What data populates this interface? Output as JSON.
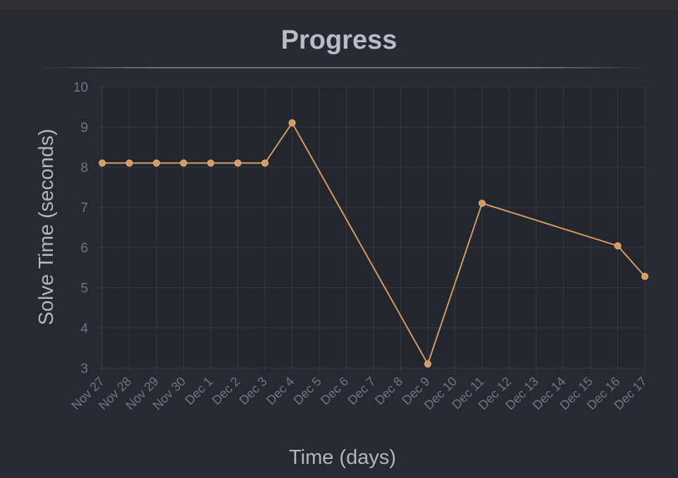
{
  "page": {
    "title": "Progress"
  },
  "chart_data": {
    "type": "line",
    "title": "Progress",
    "xlabel": "Time (days)",
    "ylabel": "Solve Time (seconds)",
    "categories": [
      "Nov 27",
      "Nov 28",
      "Nov 29",
      "Nov 30",
      "Dec 1",
      "Dec 2",
      "Dec 3",
      "Dec 4",
      "Dec 5",
      "Dec 6",
      "Dec 7",
      "Dec 8",
      "Dec 9",
      "Dec 10",
      "Dec 11",
      "Dec 12",
      "Dec 13",
      "Dec 14",
      "Dec 15",
      "Dec 16",
      "Dec 17"
    ],
    "ylim": [
      3,
      10
    ],
    "yticks": [
      3,
      4,
      5,
      6,
      7,
      8,
      9,
      10
    ],
    "grid": true,
    "series": [
      {
        "points": [
          {
            "x": "Nov 27",
            "y": 8.1
          },
          {
            "x": "Nov 28",
            "y": 8.1
          },
          {
            "x": "Nov 29",
            "y": 8.1
          },
          {
            "x": "Nov 30",
            "y": 8.1
          },
          {
            "x": "Dec 1",
            "y": 8.1
          },
          {
            "x": "Dec 2",
            "y": 8.1
          },
          {
            "x": "Dec 3",
            "y": 8.1
          },
          {
            "x": "Dec 4",
            "y": 9.1
          },
          {
            "x": "Dec 9",
            "y": 3.1
          },
          {
            "x": "Dec 11",
            "y": 7.1
          },
          {
            "x": "Dec 16",
            "y": 6.04
          },
          {
            "x": "Dec 17",
            "y": 5.28
          }
        ]
      }
    ],
    "colors": {
      "line": "#d69a64",
      "point": "#d69a64",
      "grid": "#353944",
      "plot_bg": "#23262c"
    }
  }
}
